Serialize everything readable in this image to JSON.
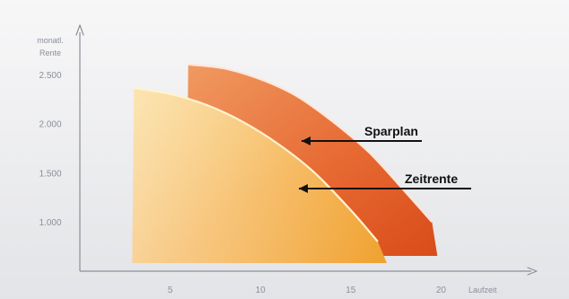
{
  "chart_data": {
    "type": "area",
    "title": "",
    "subtitle": "",
    "y_axis_label": [
      "monatl.",
      "Rente"
    ],
    "x_axis_label": "Laufzeit",
    "xlim": [
      0,
      25
    ],
    "ylim": [
      500,
      3000
    ],
    "x_ticks": [
      5,
      10,
      15,
      20
    ],
    "y_ticks": [
      1000,
      1500,
      2000,
      2500
    ],
    "x_tick_labels": [
      "5",
      "10",
      "15",
      "20"
    ],
    "y_tick_labels": [
      "1.000",
      "1.500",
      "2.000",
      "2.500"
    ],
    "grid": false,
    "legend": "none",
    "series": [
      {
        "name": "Sparplan",
        "x": [
          6,
          8,
          10,
          12,
          14,
          16,
          18,
          19.5
        ],
        "values": [
          2600,
          2560,
          2450,
          2280,
          2020,
          1710,
          1310,
          1000
        ],
        "color": "#e25c2b"
      },
      {
        "name": "Zeitrente",
        "x": [
          3,
          5,
          7,
          9,
          11,
          13,
          15,
          16.5
        ],
        "values": [
          2360,
          2300,
          2190,
          2020,
          1790,
          1500,
          1120,
          800
        ],
        "color": "#f4a63a"
      }
    ],
    "annotations": [
      {
        "text": "Sparplan",
        "series": "Sparplan"
      },
      {
        "text": "Zeitrente",
        "series": "Zeitrente"
      }
    ]
  }
}
